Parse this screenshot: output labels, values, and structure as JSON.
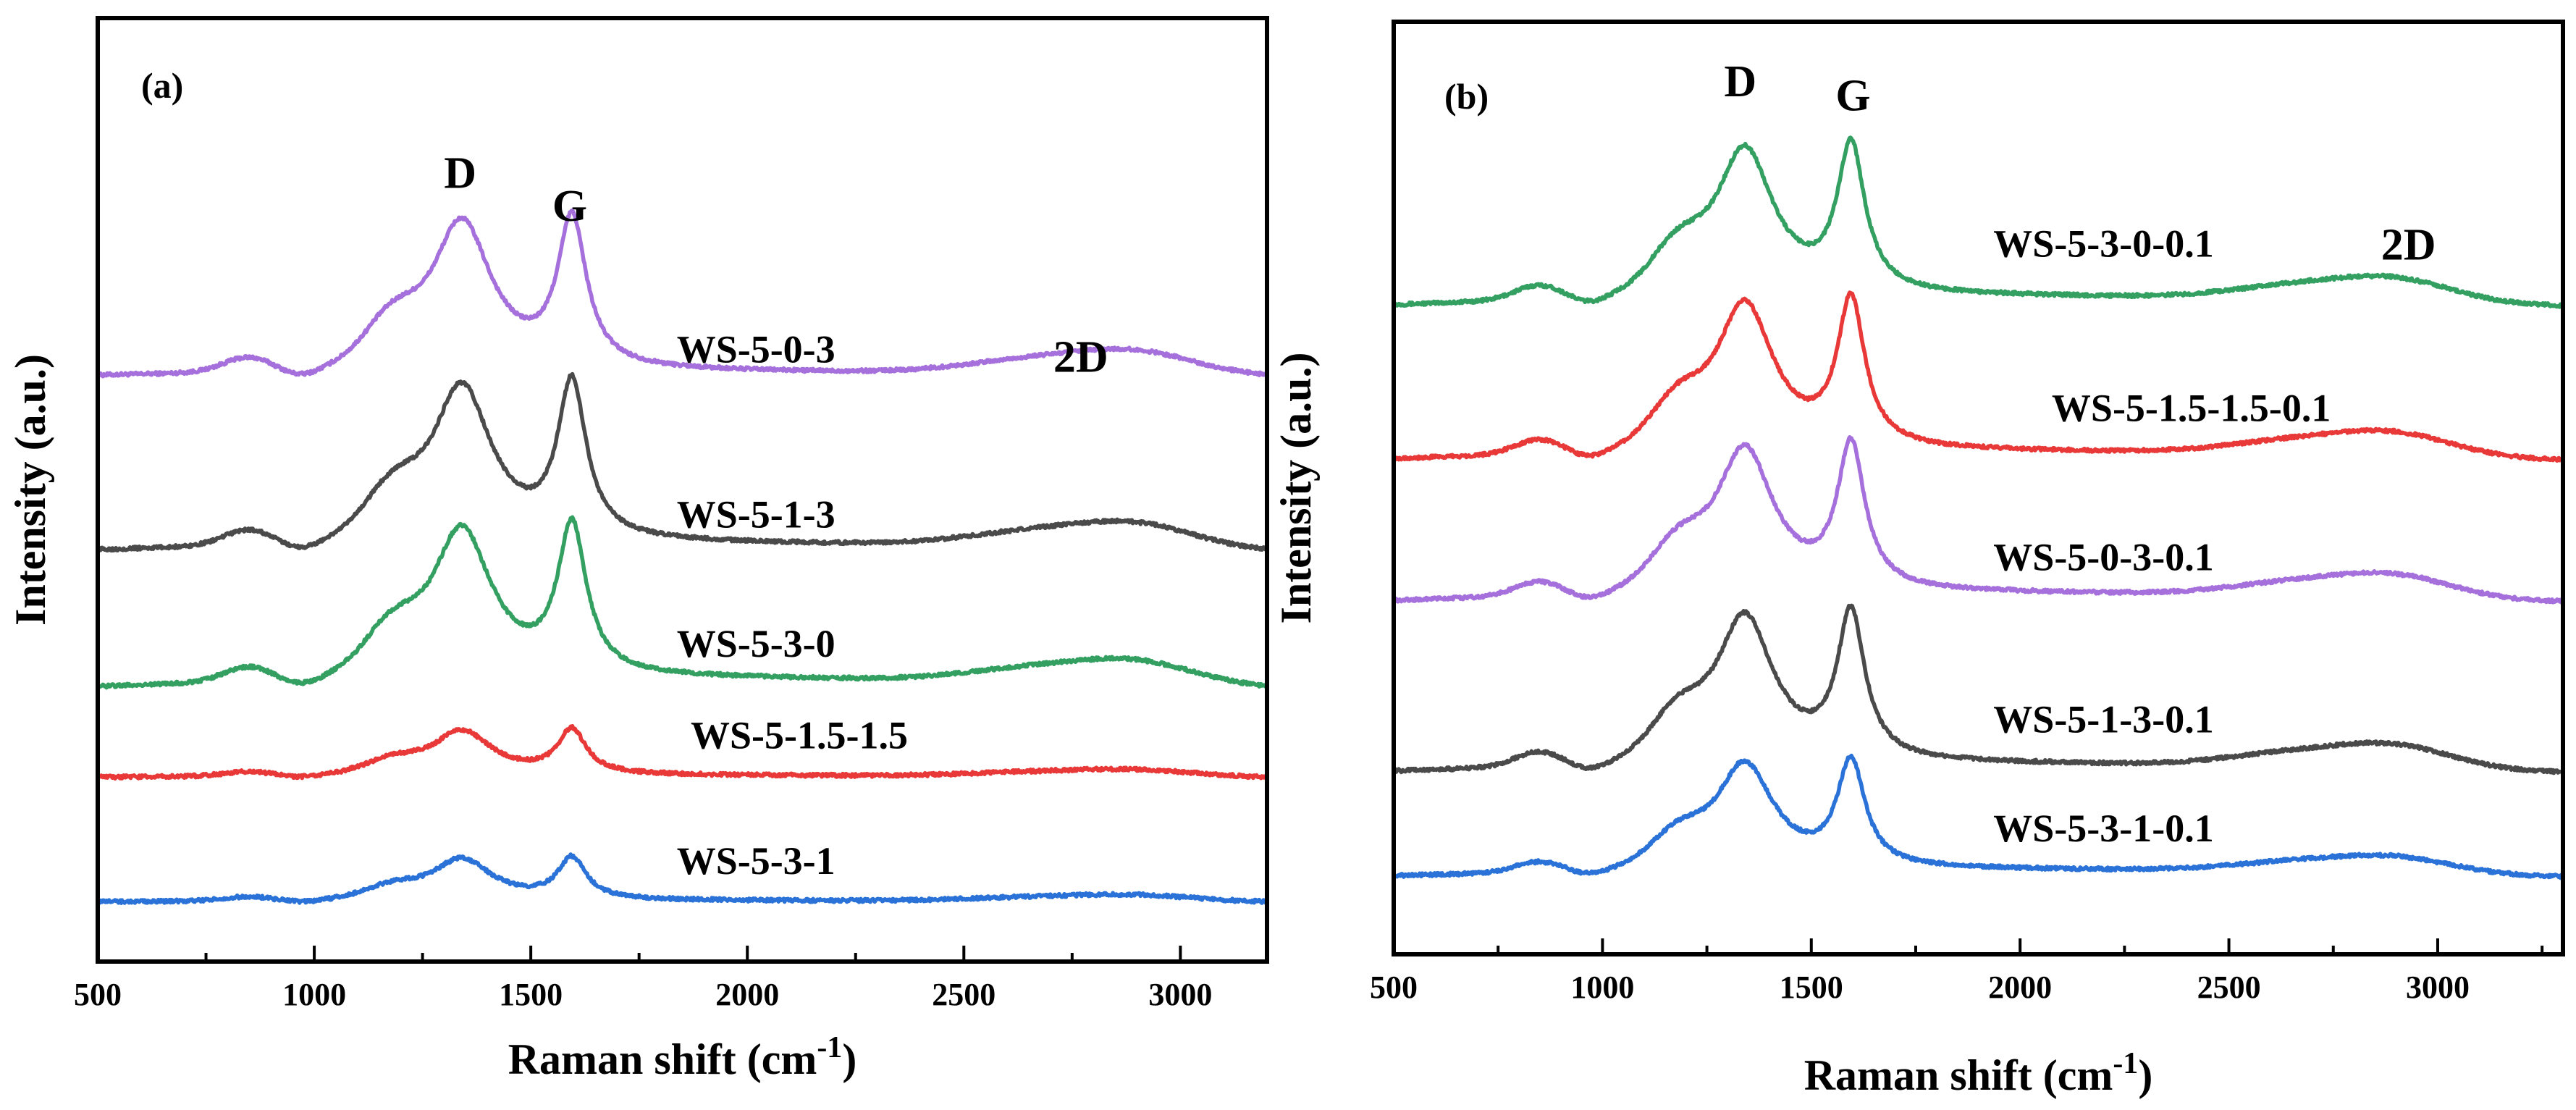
{
  "chart_data": [
    {
      "type": "line",
      "panel_label": "(a)",
      "xlabel": "Raman shift (cm",
      "xlabel_sup": "-1",
      "xlabel_close": ")",
      "ylabel": "Intensity (a.u.)",
      "xlim": [
        500,
        3200
      ],
      "xticks": [
        500,
        1000,
        1500,
        2000,
        2500,
        3000
      ],
      "ylim": [
        0,
        100
      ],
      "peak_labels": [
        {
          "text": "D",
          "x": 1337,
          "y": 82
        },
        {
          "text": "G",
          "x": 1590,
          "y": 78.5
        },
        {
          "text": "2D",
          "x": 2770,
          "y": 62.5
        }
      ],
      "series": [
        {
          "name": "WS-5-0-3",
          "color": "#a570dc",
          "offset": 62,
          "scale": 1.0,
          "bg_slope": 0.7,
          "label_x": 2020,
          "label_y": 63.5
        },
        {
          "text_dummy": "",
          "name": "WS-5-1-3",
          "color": "#4a4a4a",
          "offset": 43.5,
          "scale": 1.05,
          "bg_slope": 1.2,
          "label_x": 2020,
          "label_y": 46
        },
        {
          "name": "WS-5-3-0",
          "color": "#33a062",
          "offset": 29,
          "scale": 1.0,
          "bg_slope": 1.5,
          "label_x": 2020,
          "label_y": 32.3
        },
        {
          "name": "WS-5-1.5-1.5",
          "color": "#e83838",
          "offset": 19.5,
          "scale": 0.3,
          "bg_slope": 0.3,
          "label_x": 2120,
          "label_y": 22.6
        },
        {
          "name": "WS-5-3-1",
          "color": "#2a72d8",
          "offset": 6.3,
          "scale": 0.28,
          "bg_slope": 0.2,
          "label_x": 2020,
          "label_y": 9.3
        }
      ]
    },
    {
      "type": "line",
      "panel_label": "(b)",
      "xlabel": "Raman shift (cm",
      "xlabel_sup": "-1",
      "xlabel_close": ")",
      "ylabel": "Intensity (a.u.)",
      "xlim": [
        500,
        3300
      ],
      "xticks": [
        500,
        1000,
        1500,
        2000,
        2500,
        3000
      ],
      "ylim": [
        0,
        100
      ],
      "peak_labels": [
        {
          "text": "D",
          "x": 1330,
          "y": 92
        },
        {
          "text": "G",
          "x": 1600,
          "y": 90.5
        },
        {
          "text": "2D",
          "x": 2930,
          "y": 74.5
        }
      ],
      "series": [
        {
          "name": "WS-5-3-0-0.1",
          "color": "#33a062",
          "offset": 69.5,
          "scale": 1.0,
          "bg_slope": 1.6,
          "label_x": 2200,
          "label_y": 74.8
        },
        {
          "name": "WS-5-1.5-1.5-0.1",
          "color": "#e83838",
          "offset": 53,
          "scale": 1.0,
          "bg_slope": 1.4,
          "label_x": 2410,
          "label_y": 57.2
        },
        {
          "name": "WS-5-0-3-0.1",
          "color": "#a570dc",
          "offset": 37.8,
          "scale": 0.98,
          "bg_slope": 1.4,
          "label_x": 2200,
          "label_y": 41.2
        },
        {
          "name": "WS-5-1-3-0.1",
          "color": "#4a4a4a",
          "offset": 19.5,
          "scale": 1.0,
          "bg_slope": 1.4,
          "label_x": 2200,
          "label_y": 23.8
        },
        {
          "name": "WS-5-3-1-0.1",
          "color": "#2a72d8",
          "offset": 8.3,
          "scale": 0.72,
          "bg_slope": 1.2,
          "label_x": 2200,
          "label_y": 12.1
        }
      ]
    }
  ]
}
